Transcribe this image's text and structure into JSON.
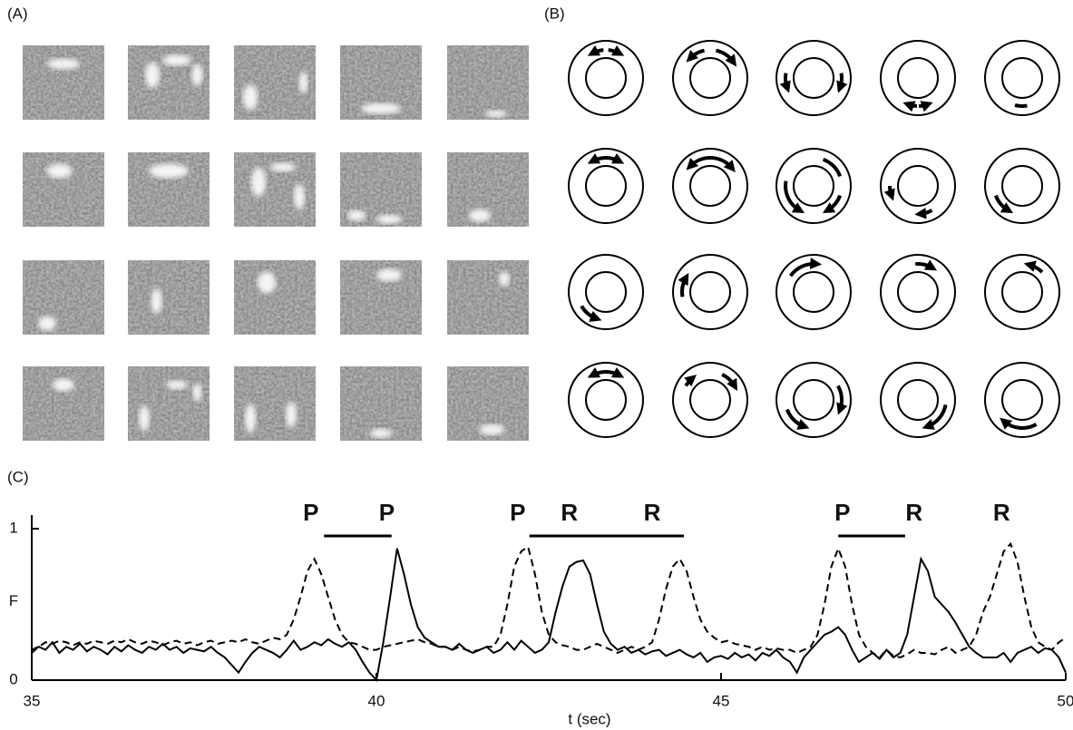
{
  "panel_labels": [
    "(A)",
    "(B)",
    "(C)"
  ],
  "chart_data": {
    "type": "line",
    "xlabel": "t (sec)",
    "ylabel": "F",
    "xlim": [
      35,
      50
    ],
    "xticks": [
      35,
      40,
      45,
      50
    ],
    "ylim": [
      0,
      1
    ],
    "yticks": [
      0,
      1
    ],
    "annotations": [
      {
        "text": "P",
        "x": 39.05
      },
      {
        "text": "P",
        "x": 40.15
      },
      {
        "text": "P",
        "x": 42.05
      },
      {
        "text": "R",
        "x": 42.8
      },
      {
        "text": "R",
        "x": 44.0
      },
      {
        "text": "P",
        "x": 46.76
      },
      {
        "text": "R",
        "x": 47.8
      },
      {
        "text": "R",
        "x": 49.07
      }
    ],
    "brackets": [
      [
        39.24,
        40.22
      ],
      [
        42.22,
        44.46
      ],
      [
        46.7,
        47.67
      ]
    ],
    "x": [
      35.0,
      35.1,
      35.2,
      35.3,
      35.4,
      35.5,
      35.6,
      35.7,
      35.8,
      35.9,
      36.0,
      36.1,
      36.2,
      36.3,
      36.4,
      36.5,
      36.6,
      36.7,
      36.8,
      36.9,
      37.0,
      37.1,
      37.2,
      37.3,
      37.4,
      37.5,
      37.6,
      37.7,
      37.8,
      37.9,
      38.0,
      38.1,
      38.2,
      38.3,
      38.4,
      38.5,
      38.6,
      38.7,
      38.8,
      38.9,
      39.0,
      39.1,
      39.2,
      39.3,
      39.4,
      39.5,
      39.6,
      39.7,
      39.8,
      39.9,
      40.0,
      40.1,
      40.2,
      40.3,
      40.4,
      40.5,
      40.6,
      40.7,
      40.8,
      40.9,
      41.0,
      41.1,
      41.2,
      41.3,
      41.4,
      41.5,
      41.6,
      41.7,
      41.8,
      41.9,
      42.0,
      42.1,
      42.2,
      42.3,
      42.4,
      42.5,
      42.6,
      42.7,
      42.8,
      42.9,
      43.0,
      43.1,
      43.2,
      43.3,
      43.4,
      43.5,
      43.6,
      43.7,
      43.8,
      43.9,
      44.0,
      44.1,
      44.2,
      44.3,
      44.4,
      44.5,
      44.6,
      44.7,
      44.8,
      44.9,
      45.0,
      45.1,
      45.2,
      45.3,
      45.4,
      45.5,
      45.6,
      45.7,
      45.8,
      45.9,
      46.0,
      46.1,
      46.2,
      46.3,
      46.4,
      46.5,
      46.6,
      46.7,
      46.8,
      46.9,
      47.0,
      47.1,
      47.2,
      47.3,
      47.4,
      47.5,
      47.6,
      47.7,
      47.8,
      47.9,
      48.0,
      48.1,
      48.2,
      48.3,
      48.4,
      48.5,
      48.6,
      48.7,
      48.8,
      48.9,
      49.0,
      49.1,
      49.2,
      49.3,
      49.4,
      49.5,
      49.6,
      49.7,
      49.8,
      49.9,
      50.0
    ],
    "series": [
      {
        "color": "#000000",
        "style": "solid",
        "values": [
          0.2,
          0.22,
          0.2,
          0.25,
          0.18,
          0.22,
          0.2,
          0.24,
          0.19,
          0.22,
          0.2,
          0.17,
          0.22,
          0.19,
          0.23,
          0.2,
          0.18,
          0.22,
          0.2,
          0.24,
          0.2,
          0.22,
          0.18,
          0.21,
          0.2,
          0.19,
          0.22,
          0.18,
          0.15,
          0.1,
          0.05,
          0.12,
          0.18,
          0.22,
          0.2,
          0.18,
          0.15,
          0.2,
          0.26,
          0.2,
          0.22,
          0.25,
          0.23,
          0.27,
          0.24,
          0.22,
          0.25,
          0.2,
          0.12,
          0.05,
          0.0,
          0.25,
          0.55,
          0.87,
          0.7,
          0.5,
          0.35,
          0.28,
          0.25,
          0.22,
          0.22,
          0.2,
          0.24,
          0.2,
          0.18,
          0.2,
          0.22,
          0.18,
          0.2,
          0.25,
          0.2,
          0.26,
          0.22,
          0.18,
          0.2,
          0.25,
          0.45,
          0.62,
          0.75,
          0.78,
          0.79,
          0.7,
          0.5,
          0.32,
          0.24,
          0.2,
          0.22,
          0.18,
          0.2,
          0.17,
          0.19,
          0.2,
          0.16,
          0.18,
          0.2,
          0.17,
          0.15,
          0.18,
          0.12,
          0.15,
          0.16,
          0.14,
          0.18,
          0.15,
          0.17,
          0.13,
          0.18,
          0.16,
          0.2,
          0.15,
          0.12,
          0.05,
          0.15,
          0.2,
          0.25,
          0.3,
          0.32,
          0.35,
          0.3,
          0.2,
          0.12,
          0.15,
          0.18,
          0.14,
          0.2,
          0.15,
          0.18,
          0.3,
          0.55,
          0.8,
          0.72,
          0.55,
          0.5,
          0.45,
          0.38,
          0.3,
          0.22,
          0.18,
          0.15,
          0.15,
          0.15,
          0.18,
          0.12,
          0.18,
          0.2,
          0.22,
          0.18,
          0.21,
          0.2,
          0.15,
          0.05
        ]
      },
      {
        "color": "#000000",
        "style": "dashed",
        "values": [
          0.18,
          0.22,
          0.25,
          0.24,
          0.26,
          0.25,
          0.23,
          0.25,
          0.24,
          0.26,
          0.25,
          0.24,
          0.26,
          0.25,
          0.27,
          0.25,
          0.24,
          0.26,
          0.25,
          0.23,
          0.25,
          0.26,
          0.24,
          0.25,
          0.23,
          0.25,
          0.26,
          0.24,
          0.25,
          0.26,
          0.25,
          0.27,
          0.25,
          0.24,
          0.26,
          0.28,
          0.27,
          0.3,
          0.4,
          0.55,
          0.72,
          0.8,
          0.7,
          0.55,
          0.4,
          0.3,
          0.25,
          0.24,
          0.22,
          0.2,
          0.2,
          0.22,
          0.23,
          0.24,
          0.25,
          0.26,
          0.27,
          0.25,
          0.24,
          0.22,
          0.22,
          0.2,
          0.22,
          0.2,
          0.19,
          0.2,
          0.22,
          0.22,
          0.3,
          0.5,
          0.75,
          0.85,
          0.88,
          0.7,
          0.45,
          0.3,
          0.25,
          0.23,
          0.22,
          0.2,
          0.2,
          0.22,
          0.24,
          0.22,
          0.2,
          0.18,
          0.2,
          0.22,
          0.2,
          0.22,
          0.25,
          0.4,
          0.6,
          0.75,
          0.8,
          0.72,
          0.55,
          0.4,
          0.32,
          0.28,
          0.25,
          0.26,
          0.24,
          0.23,
          0.22,
          0.2,
          0.22,
          0.2,
          0.21,
          0.2,
          0.2,
          0.18,
          0.2,
          0.22,
          0.3,
          0.5,
          0.75,
          0.87,
          0.75,
          0.5,
          0.3,
          0.22,
          0.18,
          0.15,
          0.2,
          0.16,
          0.15,
          0.17,
          0.2,
          0.18,
          0.18,
          0.17,
          0.2,
          0.22,
          0.18,
          0.2,
          0.22,
          0.3,
          0.45,
          0.55,
          0.7,
          0.85,
          0.9,
          0.78,
          0.55,
          0.35,
          0.25,
          0.22,
          0.2,
          0.25,
          0.28
        ]
      }
    ]
  }
}
